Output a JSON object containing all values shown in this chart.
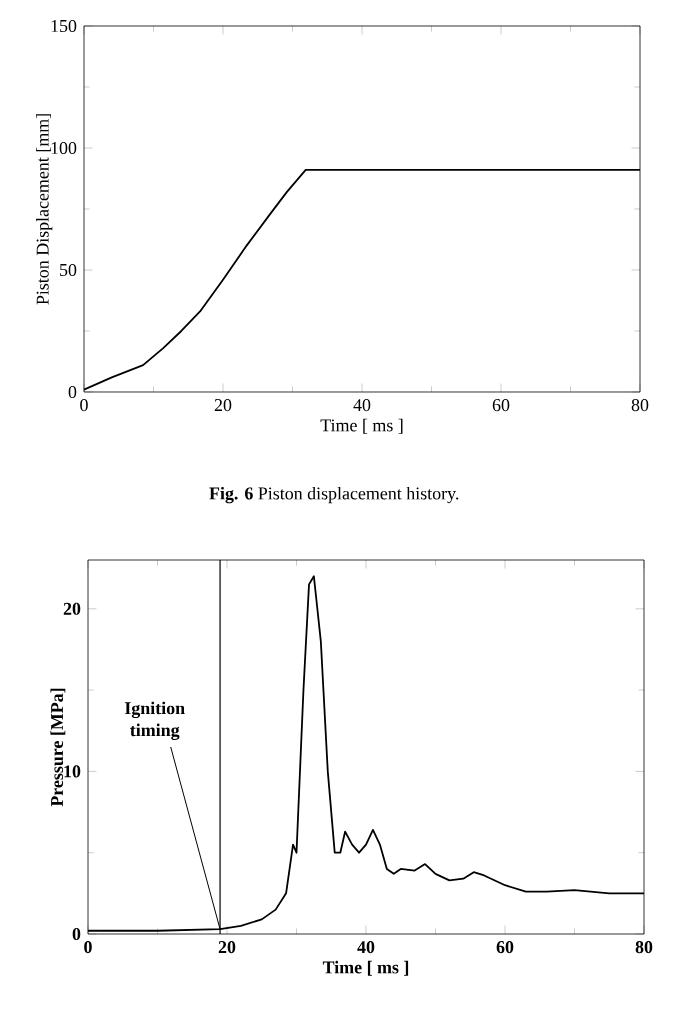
{
  "chart_data": [
    {
      "type": "line",
      "xlabel": "Time [ ms ]",
      "ylabel": "Piston Displacement  [mm]",
      "xlim": [
        0,
        80
      ],
      "ylim": [
        0,
        150
      ],
      "xticks": [
        0,
        20,
        40,
        60,
        80
      ],
      "yticks": [
        0,
        50,
        100,
        150
      ],
      "color": "#000000",
      "marker": "none",
      "line_style": "solid",
      "x": [
        0,
        4,
        8.5,
        11.4,
        14,
        16.7,
        20,
        23.4,
        26.8,
        29.2,
        31.9,
        33,
        40,
        50,
        60,
        70,
        80
      ],
      "values": [
        1,
        6,
        11,
        18,
        25,
        33,
        46,
        60,
        73,
        82,
        91,
        91,
        91,
        91,
        91,
        91,
        91
      ],
      "annotations": [
        "**Fig. 6** Piston displacement history."
      ]
    },
    {
      "type": "line",
      "xlabel": "Time [ ms ]",
      "ylabel": "Pressure [MPa]",
      "xlim": [
        0,
        80
      ],
      "ylim": [
        0,
        23
      ],
      "xticks": [
        0,
        20,
        40,
        60,
        80
      ],
      "yticks": [
        0,
        10,
        20
      ],
      "color": "#000000",
      "marker": "none",
      "line_style": "solid",
      "x": [
        0,
        10,
        19,
        22,
        25,
        27,
        28.5,
        29.5,
        30,
        31,
        31.8,
        32.5,
        33.5,
        34.5,
        35.5,
        36.3,
        37,
        38,
        39,
        40,
        41,
        42,
        43,
        44,
        45,
        47,
        48.5,
        50,
        52,
        54,
        55.5,
        57,
        60,
        63,
        66,
        70,
        75,
        80
      ],
      "values": [
        0.2,
        0.2,
        0.3,
        0.5,
        0.9,
        1.5,
        2.5,
        5.5,
        5,
        15,
        21.5,
        22,
        18,
        10,
        5,
        5,
        6.3,
        5.5,
        5,
        5.5,
        6.4,
        5.5,
        4,
        3.7,
        4,
        3.9,
        4.3,
        3.7,
        3.3,
        3.4,
        3.8,
        3.6,
        3,
        2.6,
        2.6,
        2.7,
        2.5,
        2.5
      ],
      "ref_lines": [
        {
          "axis": "x",
          "value": 19
        }
      ],
      "annotations": [
        {
          "text": "Ignition timing",
          "x": 19,
          "y": 0.3
        }
      ]
    }
  ]
}
